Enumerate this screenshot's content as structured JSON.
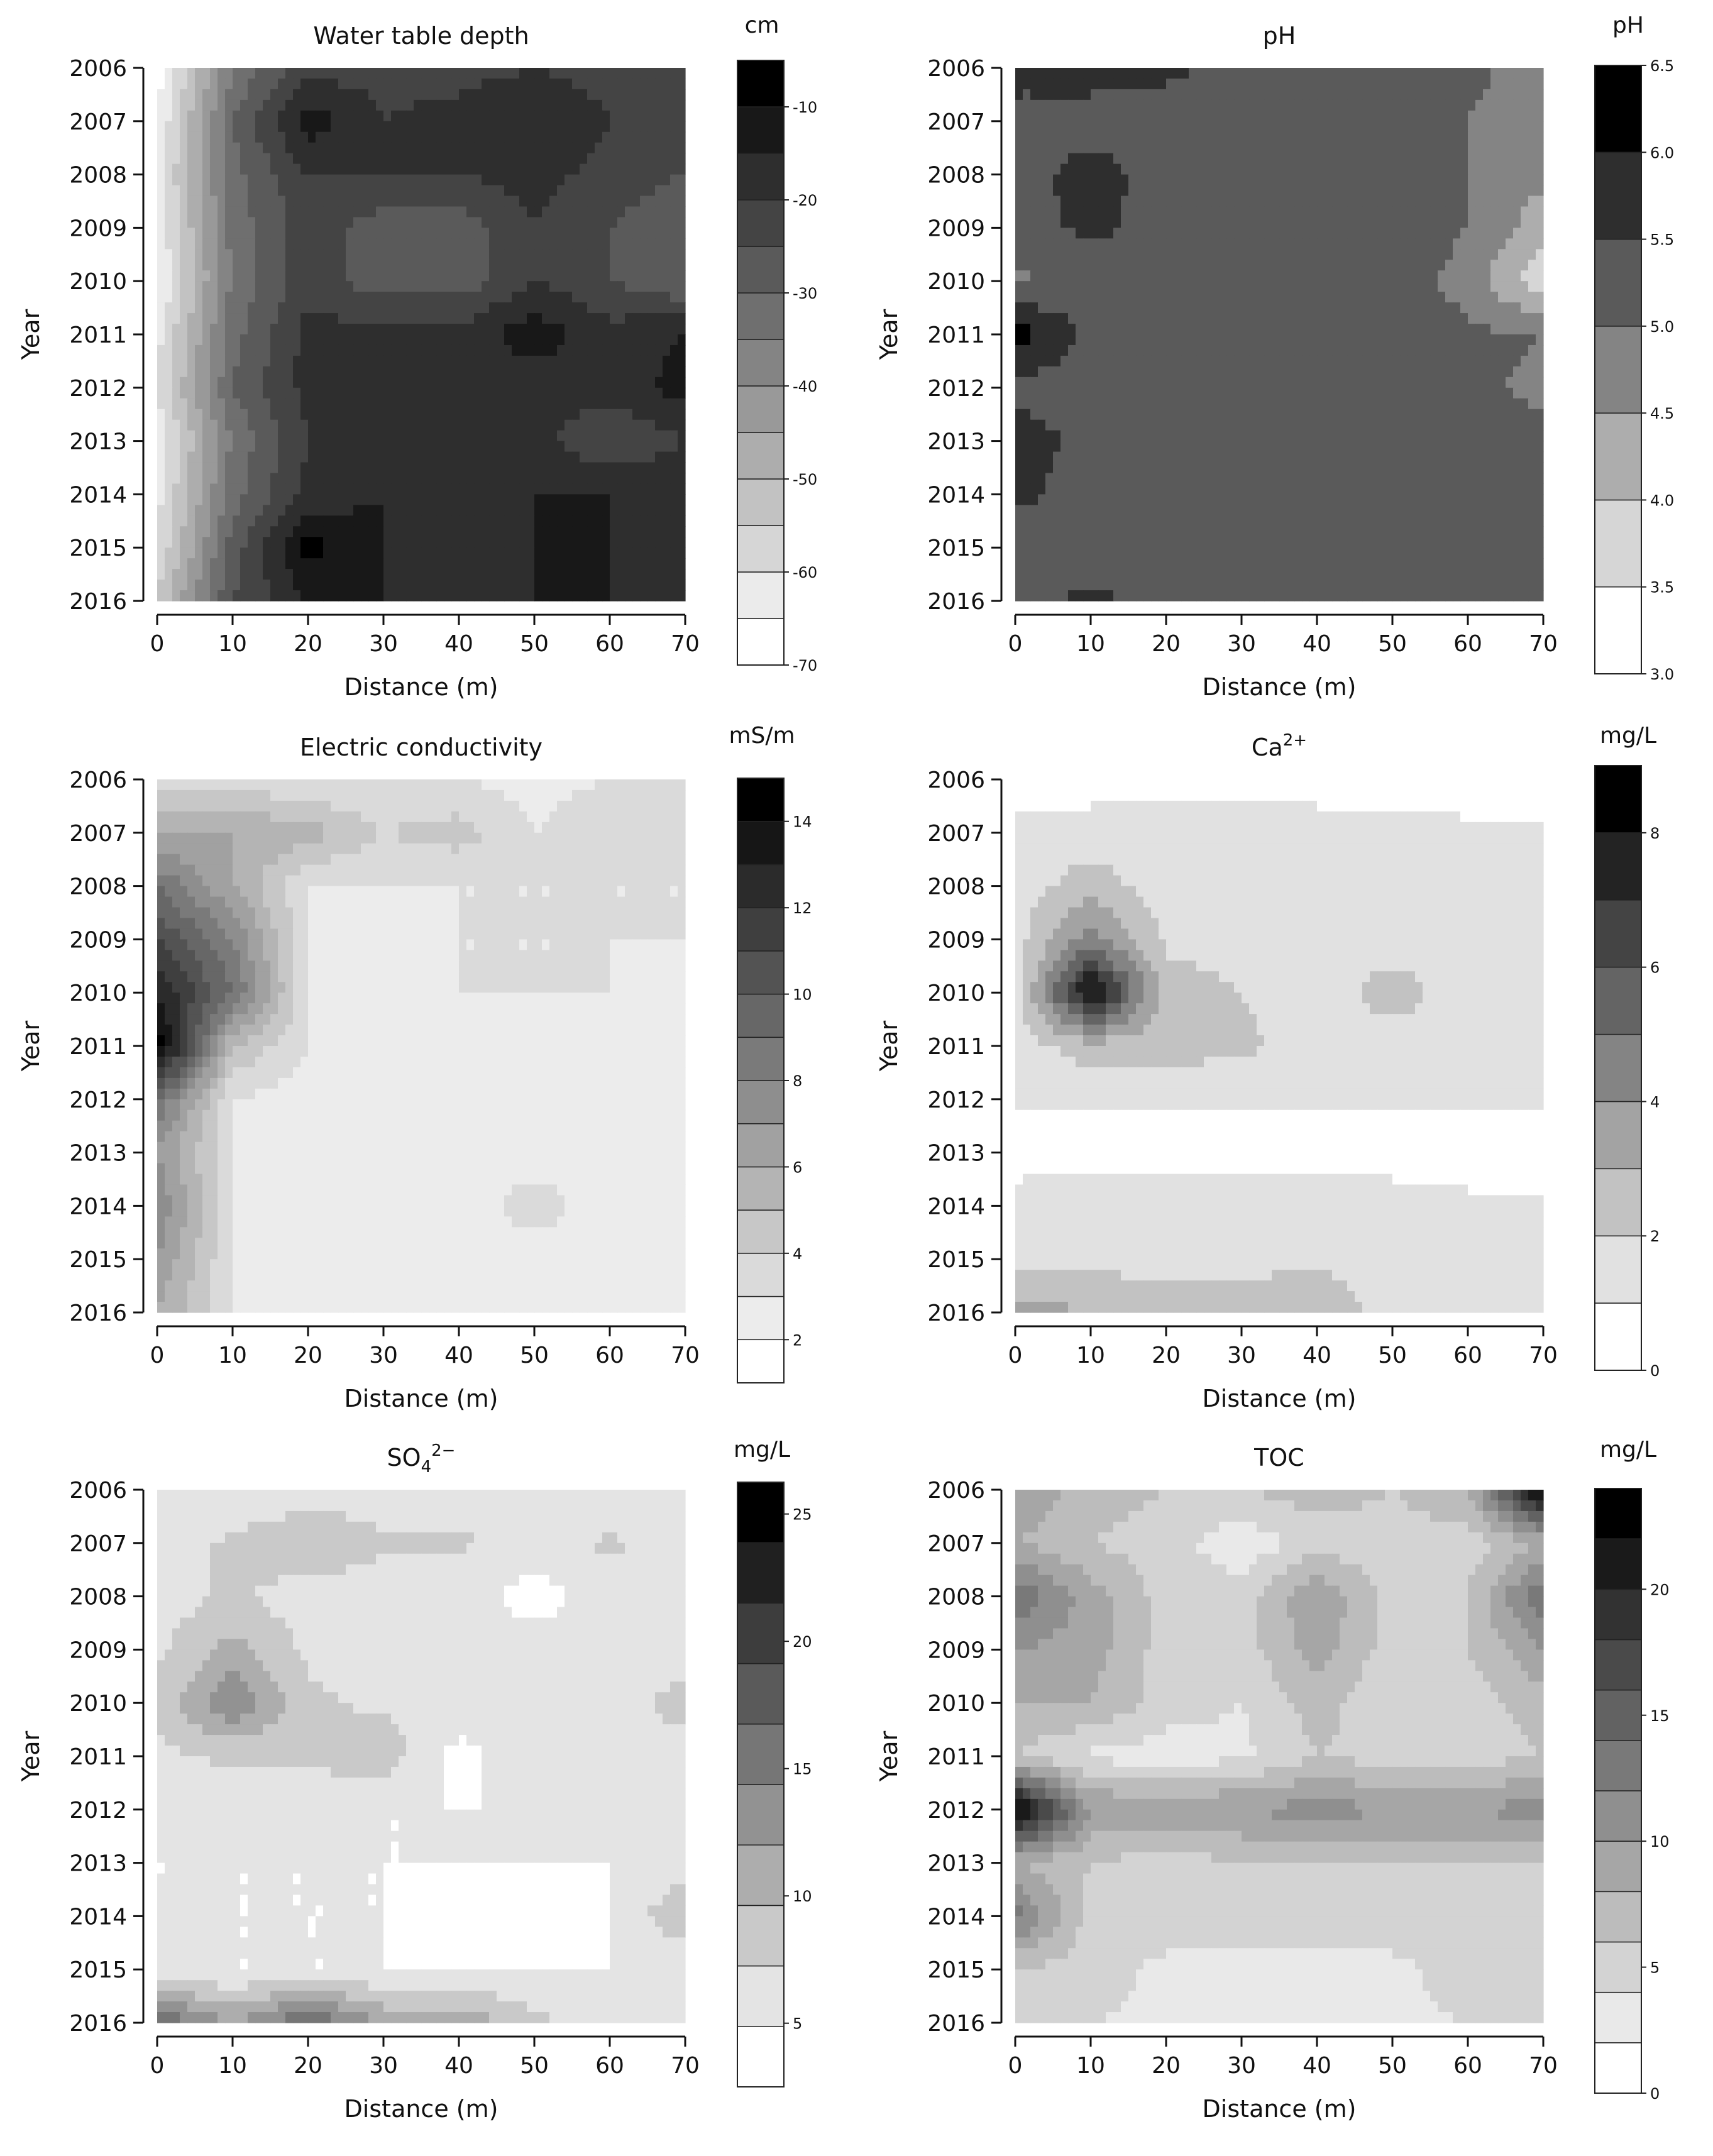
{
  "figure": {
    "panels": [
      {
        "id": "water-table",
        "title": "Water table depth",
        "unit": "cm",
        "xlabel": "Distance (m)",
        "ylabel": "Year",
        "cb_min": -70,
        "cb_max": -5,
        "cb_step": 5,
        "cb_ticks": [
          -10,
          -20,
          -30,
          -40,
          -50,
          -60,
          -70
        ],
        "cb_tick_labels": [
          "-10",
          "-20",
          "-30",
          "-40",
          "-50",
          "-60",
          "-70"
        ]
      },
      {
        "id": "ph",
        "title": "pH",
        "unit": "pH",
        "xlabel": "Distance (m)",
        "ylabel": "Year",
        "cb_min": 3.0,
        "cb_max": 6.5,
        "cb_step": 0.5,
        "cb_ticks": [
          6.5,
          6.0,
          5.5,
          5.0,
          4.5,
          4.0,
          3.5,
          3.0
        ],
        "cb_tick_labels": [
          "6.5",
          "6.0",
          "5.5",
          "5.0",
          "4.5",
          "4.0",
          "3.5",
          "3.0"
        ]
      },
      {
        "id": "ec",
        "title": "Electric conductivity",
        "unit": "mS/m",
        "xlabel": "Distance (m)",
        "ylabel": "Year",
        "cb_min": 1,
        "cb_max": 15,
        "cb_step": 1,
        "cb_ticks": [
          14,
          12,
          10,
          8,
          6,
          4,
          2
        ],
        "cb_tick_labels": [
          "14",
          "12",
          "10",
          "8",
          "6",
          "4",
          "2"
        ]
      },
      {
        "id": "ca",
        "title": "Ca",
        "title_sup": "2+",
        "unit": "mg/L",
        "xlabel": "Distance (m)",
        "ylabel": "Year",
        "cb_min": 0,
        "cb_max": 9,
        "cb_step": 1,
        "cb_ticks": [
          8,
          6,
          4,
          2,
          0
        ],
        "cb_tick_labels": [
          "8",
          "6",
          "4",
          "2",
          "0"
        ]
      },
      {
        "id": "so4",
        "title": "SO",
        "title_sub": "4",
        "title_sup": "2−",
        "unit": "mg/L",
        "xlabel": "Distance (m)",
        "ylabel": "Year",
        "cb_min": 2.5,
        "cb_max": 26.25,
        "cb_step": 2.5,
        "cb_ticks": [
          25,
          20,
          15,
          10,
          5
        ],
        "cb_tick_labels": [
          "25",
          "20",
          "15",
          "10",
          "5"
        ]
      },
      {
        "id": "toc",
        "title": "TOC",
        "unit": "mg/L",
        "xlabel": "Distance (m)",
        "ylabel": "Year",
        "cb_min": 0,
        "cb_max": 24,
        "cb_step": 2,
        "cb_ticks": [
          20,
          15,
          10,
          5,
          0
        ],
        "cb_tick_labels": [
          "20",
          "15",
          "10",
          "5",
          "0"
        ]
      }
    ]
  },
  "chart_data": [
    {
      "type": "heatmap",
      "title": "Water table depth",
      "xlabel": "Distance (m)",
      "ylabel": "Year",
      "unit": "cm",
      "xlim": [
        0,
        70
      ],
      "ylim": [
        2006,
        2016
      ],
      "x_ticks": [
        0,
        10,
        20,
        30,
        40,
        50,
        60,
        70
      ],
      "y_ticks": [
        2006,
        2007,
        2008,
        2009,
        2010,
        2011,
        2012,
        2013,
        2014,
        2015,
        2016
      ],
      "x": [
        0,
        10,
        20,
        30,
        40,
        50,
        60,
        70
      ],
      "y": [
        2006,
        2007,
        2008,
        2009,
        2010,
        2011,
        2012,
        2013,
        2014,
        2015,
        2016
      ],
      "z": [
        [
          -68,
          -35,
          -22,
          -22,
          -22,
          -20,
          -22,
          -22
        ],
        [
          -65,
          -30,
          -12,
          -20,
          -18,
          -15,
          -20,
          -22
        ],
        [
          -62,
          -32,
          -20,
          -20,
          -20,
          -18,
          -22,
          -25
        ],
        [
          -64,
          -33,
          -22,
          -28,
          -28,
          -20,
          -25,
          -30
        ],
        [
          -66,
          -34,
          -22,
          -28,
          -28,
          -20,
          -25,
          -30
        ],
        [
          -62,
          -32,
          -18,
          -18,
          -18,
          -12,
          -18,
          -15
        ],
        [
          -60,
          -30,
          -18,
          -18,
          -18,
          -18,
          -18,
          -13
        ],
        [
          -64,
          -34,
          -20,
          -20,
          -20,
          -18,
          -25,
          -20
        ],
        [
          -62,
          -32,
          -18,
          -15,
          -18,
          -15,
          -15,
          -16
        ],
        [
          -60,
          -28,
          -8,
          -15,
          -18,
          -15,
          -15,
          -16
        ],
        [
          -55,
          -25,
          -15,
          -15,
          -18,
          -15,
          -15,
          -15
        ]
      ]
    },
    {
      "type": "heatmap",
      "title": "pH",
      "xlabel": "Distance (m)",
      "ylabel": "Year",
      "unit": "pH",
      "xlim": [
        0,
        70
      ],
      "ylim": [
        2006,
        2016
      ],
      "x_ticks": [
        0,
        10,
        20,
        30,
        40,
        50,
        60,
        70
      ],
      "y_ticks": [
        2006,
        2007,
        2008,
        2009,
        2010,
        2011,
        2012,
        2013,
        2014,
        2015,
        2016
      ],
      "x": [
        0,
        10,
        20,
        30,
        40,
        50,
        60,
        70
      ],
      "y": [
        2006,
        2007,
        2008,
        2009,
        2010,
        2011,
        2012,
        2013,
        2014,
        2015,
        2016
      ],
      "z": [
        [
          5.7,
          5.7,
          5.6,
          5.3,
          5.3,
          5.3,
          5.1,
          4.8
        ],
        [
          5.3,
          5.3,
          5.3,
          5.3,
          5.3,
          5.3,
          5.0,
          4.8
        ],
        [
          5.3,
          5.7,
          5.3,
          5.3,
          5.3,
          5.3,
          5.0,
          4.6
        ],
        [
          5.3,
          5.6,
          5.3,
          5.3,
          5.3,
          5.3,
          5.0,
          4.2
        ],
        [
          4.9,
          5.3,
          5.3,
          5.3,
          5.3,
          5.3,
          4.8,
          3.6
        ],
        [
          6.3,
          5.3,
          5.3,
          5.3,
          5.3,
          5.3,
          5.1,
          5.0
        ],
        [
          5.3,
          5.3,
          5.3,
          5.3,
          5.3,
          5.3,
          5.1,
          4.9
        ],
        [
          5.8,
          5.3,
          5.3,
          5.3,
          5.3,
          5.3,
          5.3,
          5.1
        ],
        [
          5.6,
          5.3,
          5.3,
          5.3,
          5.3,
          5.3,
          5.3,
          5.2
        ],
        [
          5.3,
          5.3,
          5.3,
          5.2,
          5.3,
          5.3,
          5.3,
          5.2
        ],
        [
          5.3,
          5.6,
          5.3,
          5.3,
          5.3,
          5.3,
          5.3,
          5.3
        ]
      ]
    },
    {
      "type": "heatmap",
      "title": "Electric conductivity",
      "xlabel": "Distance (m)",
      "ylabel": "Year",
      "unit": "mS/m",
      "xlim": [
        0,
        70
      ],
      "ylim": [
        2006,
        2016
      ],
      "x_ticks": [
        0,
        10,
        20,
        30,
        40,
        50,
        60,
        70
      ],
      "y_ticks": [
        2006,
        2007,
        2008,
        2009,
        2010,
        2011,
        2012,
        2013,
        2014,
        2015,
        2016
      ],
      "x": [
        0,
        10,
        20,
        30,
        40,
        50,
        60,
        70
      ],
      "y": [
        2006,
        2007,
        2008,
        2009,
        2010,
        2011,
        2012,
        2013,
        2014,
        2015,
        2016
      ],
      "z": [
        [
          3.5,
          3.5,
          3.0,
          3.0,
          3.0,
          2.5,
          3.0,
          3.0
        ],
        [
          6.0,
          6.0,
          5.5,
          4.0,
          4.5,
          3.0,
          4.0,
          3.0
        ],
        [
          9.0,
          6.0,
          3.0,
          3.0,
          3.0,
          3.0,
          3.0,
          3.0
        ],
        [
          11.0,
          8.0,
          3.0,
          2.5,
          3.0,
          3.0,
          3.0,
          3.0
        ],
        [
          13.0,
          9.0,
          3.0,
          2.5,
          3.0,
          3.0,
          3.0,
          2.5
        ],
        [
          15.0,
          5.0,
          3.0,
          2.5,
          2.5,
          2.5,
          3.0,
          3.0
        ],
        [
          9.0,
          3.0,
          2.5,
          2.5,
          2.5,
          2.5,
          2.5,
          2.5
        ],
        [
          7.0,
          3.0,
          2.5,
          2.5,
          2.5,
          2.5,
          2.5,
          2.5
        ],
        [
          8.0,
          3.0,
          2.5,
          2.5,
          2.5,
          3.5,
          2.5,
          2.5
        ],
        [
          7.0,
          3.0,
          2.5,
          2.5,
          2.5,
          2.5,
          2.5,
          2.5
        ],
        [
          6.0,
          3.0,
          3.0,
          3.0,
          3.0,
          3.0,
          2.5,
          2.5
        ]
      ]
    },
    {
      "type": "heatmap",
      "title": "Ca²⁺",
      "xlabel": "Distance (m)",
      "ylabel": "Year",
      "unit": "mg/L",
      "xlim": [
        0,
        70
      ],
      "ylim": [
        2006,
        2016
      ],
      "x_ticks": [
        0,
        10,
        20,
        30,
        40,
        50,
        60,
        70
      ],
      "y_ticks": [
        2006,
        2007,
        2008,
        2009,
        2010,
        2011,
        2012,
        2013,
        2014,
        2015,
        2016
      ],
      "x": [
        0,
        10,
        20,
        30,
        40,
        50,
        60,
        70
      ],
      "y": [
        2006,
        2007,
        2008,
        2009,
        2010,
        2011,
        2012,
        2013,
        2014,
        2015,
        2016
      ],
      "z": [
        [
          0.5,
          0.5,
          0.5,
          0.5,
          0.5,
          0.5,
          0.5,
          0.5
        ],
        [
          1.2,
          1.5,
          1.5,
          1.5,
          1.5,
          1.3,
          1.2,
          1.2
        ],
        [
          1.5,
          2.5,
          1.5,
          1.5,
          1.5,
          1.5,
          1.5,
          1.5
        ],
        [
          1.5,
          4.5,
          1.8,
          1.5,
          1.5,
          1.5,
          1.5,
          1.5
        ],
        [
          1.5,
          8.5,
          2.5,
          2.0,
          1.5,
          2.5,
          1.5,
          1.5
        ],
        [
          1.5,
          2.5,
          2.5,
          2.2,
          1.5,
          1.5,
          1.5,
          1.5
        ],
        [
          1.2,
          1.2,
          1.2,
          1.2,
          1.2,
          1.2,
          1.2,
          1.2
        ],
        [
          0.5,
          0.5,
          0.5,
          0.5,
          0.5,
          0.5,
          0.5,
          0.5
        ],
        [
          1.5,
          1.5,
          1.5,
          1.5,
          1.5,
          1.5,
          1.2,
          1.2
        ],
        [
          1.5,
          1.8,
          1.5,
          1.8,
          1.8,
          1.5,
          1.2,
          1.2
        ],
        [
          3.5,
          3.0,
          2.5,
          2.2,
          2.8,
          1.5,
          1.2,
          1.2
        ]
      ]
    },
    {
      "type": "heatmap",
      "title": "SO₄²⁻",
      "xlabel": "Distance (m)",
      "ylabel": "Year",
      "unit": "mg/L",
      "xlim": [
        0,
        70
      ],
      "ylim": [
        2006,
        2016
      ],
      "x_ticks": [
        0,
        10,
        20,
        30,
        40,
        50,
        60,
        70
      ],
      "y_ticks": [
        2006,
        2007,
        2008,
        2009,
        2010,
        2011,
        2012,
        2013,
        2014,
        2015,
        2016
      ],
      "x": [
        0,
        10,
        20,
        30,
        40,
        50,
        60,
        70
      ],
      "y": [
        2006,
        2007,
        2008,
        2009,
        2010,
        2011,
        2012,
        2013,
        2014,
        2015,
        2016
      ],
      "z": [
        [
          5.0,
          5.0,
          6.0,
          6.0,
          6.0,
          5.0,
          5.0,
          5.0
        ],
        [
          6.0,
          8.0,
          10.0,
          8.0,
          8.0,
          6.0,
          8.0,
          6.0
        ],
        [
          6.0,
          8.0,
          6.0,
          6.0,
          6.0,
          4.0,
          6.0,
          6.0
        ],
        [
          7.0,
          11.0,
          7.0,
          6.0,
          6.0,
          6.0,
          6.0,
          7.0
        ],
        [
          8.0,
          15.0,
          8.0,
          7.0,
          7.0,
          6.0,
          7.0,
          8.0
        ],
        [
          7.0,
          8.0,
          8.0,
          9.0,
          4.0,
          7.0,
          7.0,
          7.0
        ],
        [
          6.0,
          6.0,
          6.0,
          5.0,
          5.0,
          5.0,
          5.0,
          5.0
        ],
        [
          5.0,
          5.0,
          5.0,
          5.0,
          5.0,
          5.0,
          5.0,
          6.0
        ],
        [
          5.0,
          5.0,
          5.0,
          5.0,
          4.0,
          4.0,
          5.0,
          10.0
        ],
        [
          5.0,
          5.0,
          5.0,
          5.0,
          5.0,
          5.0,
          5.0,
          5.0
        ],
        [
          18.0,
          12.0,
          18.0,
          12.0,
          12.0,
          8.0,
          7.0,
          6.0
        ]
      ]
    },
    {
      "type": "heatmap",
      "title": "TOC",
      "xlabel": "Distance (m)",
      "ylabel": "Year",
      "unit": "mg/L",
      "xlim": [
        0,
        70
      ],
      "ylim": [
        2006,
        2016
      ],
      "x_ticks": [
        0,
        10,
        20,
        30,
        40,
        50,
        60,
        70
      ],
      "y_ticks": [
        2006,
        2007,
        2008,
        2009,
        2010,
        2011,
        2012,
        2013,
        2014,
        2015,
        2016
      ],
      "x": [
        0,
        10,
        20,
        30,
        40,
        50,
        60,
        70
      ],
      "y": [
        2006,
        2007,
        2008,
        2009,
        2010,
        2011,
        2012,
        2013,
        2014,
        2015,
        2016
      ],
      "z": [
        [
          10.0,
          7.0,
          6.0,
          6.0,
          7.0,
          6.0,
          8.0,
          24.0
        ],
        [
          8.0,
          6.0,
          5.0,
          2.5,
          5.0,
          5.0,
          5.0,
          8.0
        ],
        [
          14.0,
          9.0,
          5.0,
          5.0,
          10.0,
          5.0,
          6.0,
          14.0
        ],
        [
          10.0,
          9.0,
          5.0,
          5.0,
          9.0,
          5.0,
          6.0,
          10.0
        ],
        [
          8.0,
          8.0,
          5.0,
          4.0,
          7.0,
          4.0,
          5.0,
          7.0
        ],
        [
          6.0,
          3.5,
          3.0,
          3.5,
          6.0,
          5.0,
          5.0,
          6.0
        ],
        [
          24.0,
          10.0,
          10.0,
          10.0,
          11.0,
          10.0,
          10.0,
          11.0
        ],
        [
          8.0,
          6.0,
          5.0,
          6.0,
          6.0,
          6.0,
          6.0,
          6.0
        ],
        [
          13.0,
          5.0,
          5.0,
          5.0,
          5.0,
          5.0,
          5.0,
          6.0
        ],
        [
          6.0,
          5.0,
          3.5,
          3.5,
          3.5,
          3.5,
          5.0,
          5.0
        ],
        [
          5.0,
          4.0,
          3.5,
          3.5,
          3.5,
          3.5,
          4.0,
          4.0
        ]
      ]
    }
  ]
}
